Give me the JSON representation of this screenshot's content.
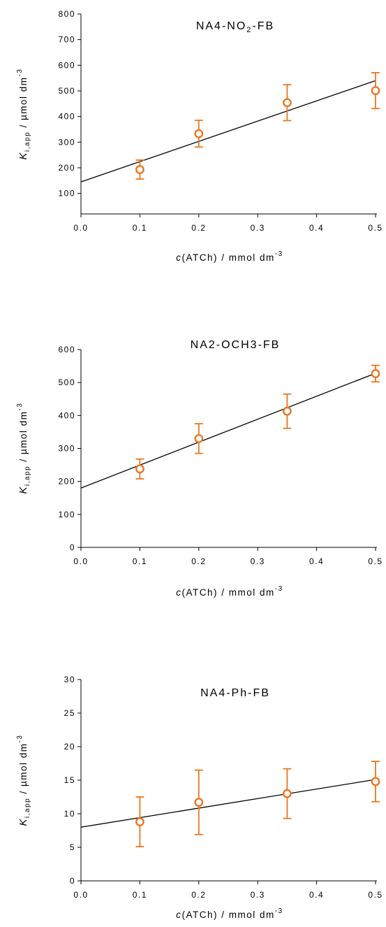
{
  "chart_data": [
    {
      "type": "scatter",
      "title": {
        "main": "NA4-NO",
        "sub": "2",
        "rest": "-FB"
      },
      "xlabel": {
        "italic": "c",
        "text": "(ATCh) / mmol dm",
        "sup": "-3"
      },
      "ylabel": {
        "italic": "K",
        "sub": "i,app",
        "text": " / µmol dm",
        "sup": "-3"
      },
      "xlim": [
        0,
        0.5
      ],
      "ylim": [
        20,
        800
      ],
      "x_ticks": [
        0.0,
        0.1,
        0.2,
        0.3,
        0.4,
        0.5
      ],
      "x_tick_labels": [
        "0.0",
        "0.1",
        "0.2",
        "0.3",
        "0.4",
        "0.5"
      ],
      "y_ticks": [
        100,
        200,
        300,
        400,
        500,
        600,
        700,
        800
      ],
      "y_tick_labels": [
        "100",
        "200",
        "300",
        "400",
        "500",
        "600",
        "700",
        "800"
      ],
      "series": [
        {
          "x": [
            0.1,
            0.2,
            0.35,
            0.5
          ],
          "y": [
            193,
            333,
            454,
            501
          ],
          "yerr": [
            37,
            52,
            70,
            70
          ]
        }
      ],
      "fit_line": {
        "x": [
          0,
          0.5
        ],
        "y": [
          145,
          540
        ]
      }
    },
    {
      "type": "scatter",
      "title": {
        "main": "NA2-OCH3-FB",
        "sub": "",
        "rest": ""
      },
      "xlabel": {
        "italic": "c",
        "text": "(ATCh) / mmol dm",
        "sup": "-3"
      },
      "ylabel": {
        "italic": "K",
        "sub": "i,app",
        "text": " / µmol dm",
        "sup": "-3"
      },
      "xlim": [
        0,
        0.5
      ],
      "ylim": [
        0,
        600
      ],
      "x_ticks": [
        0.0,
        0.1,
        0.2,
        0.3,
        0.4,
        0.5
      ],
      "x_tick_labels": [
        "0.0",
        "0.1",
        "0.2",
        "0.3",
        "0.4",
        "0.5"
      ],
      "y_ticks": [
        0,
        100,
        200,
        300,
        400,
        500,
        600
      ],
      "y_tick_labels": [
        "0",
        "100",
        "200",
        "300",
        "400",
        "500",
        "600"
      ],
      "series": [
        {
          "x": [
            0.1,
            0.2,
            0.35,
            0.5
          ],
          "y": [
            238,
            330,
            413,
            527
          ],
          "yerr": [
            30,
            45,
            52,
            25
          ]
        }
      ],
      "fit_line": {
        "x": [
          0,
          0.5
        ],
        "y": [
          180,
          528
        ]
      }
    },
    {
      "type": "scatter",
      "title": {
        "main": "NA4-Ph-FB",
        "sub": "",
        "rest": ""
      },
      "xlabel": {
        "italic": "c",
        "text": "(ATCh) / mmol dm",
        "sup": "-3"
      },
      "ylabel": {
        "italic": "K",
        "sub": "i,app",
        "text": " / µmol dm",
        "sup": "-3"
      },
      "xlim": [
        0,
        0.5
      ],
      "ylim": [
        0,
        30
      ],
      "x_ticks": [
        0.0,
        0.1,
        0.2,
        0.3,
        0.4,
        0.5
      ],
      "x_tick_labels": [
        "0.0",
        "0.1",
        "0.2",
        "0.3",
        "0.4",
        "0.5"
      ],
      "y_ticks": [
        0,
        5,
        10,
        15,
        20,
        25,
        30
      ],
      "y_tick_labels": [
        "0",
        "5",
        "10",
        "15",
        "20",
        "25",
        "30"
      ],
      "series": [
        {
          "x": [
            0.1,
            0.2,
            0.35,
            0.5
          ],
          "y": [
            8.8,
            11.7,
            13.0,
            14.8
          ],
          "yerr": [
            3.7,
            4.8,
            3.7,
            3.0
          ]
        }
      ],
      "fit_line": {
        "x": [
          0,
          0.5
        ],
        "y": [
          8.0,
          15.1
        ]
      }
    }
  ],
  "style": {
    "marker_color": "#e87722",
    "line_color": "#000000"
  }
}
